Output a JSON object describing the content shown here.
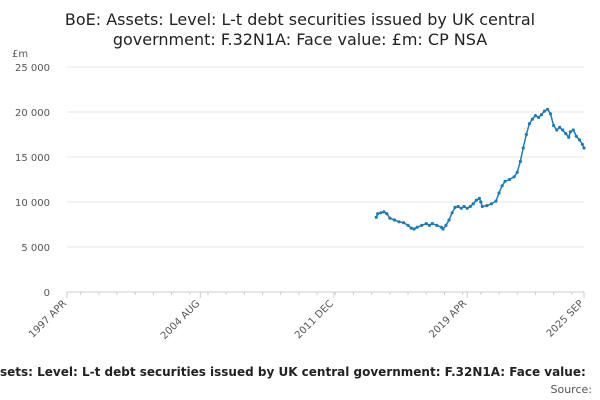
{
  "chart_data": {
    "type": "line",
    "title_line1": "BoE: Assets: Level: L-t debt securities issued by UK central",
    "title_line2": "government: F.32N1A: Face value: £m: CP NSA",
    "ylabel": "£m",
    "ylim": [
      0,
      25000
    ],
    "yticks": [
      "0",
      "5 000",
      "10 000",
      "15 000",
      "20 000",
      "25 000"
    ],
    "xlim": [
      1997.25,
      2025.67
    ],
    "xticks": [
      {
        "label": "1997 APR",
        "x": 1997.25
      },
      {
        "label": "2004 AUG",
        "x": 2004.58
      },
      {
        "label": "2011 DEC",
        "x": 2011.92
      },
      {
        "label": "2019 APR",
        "x": 2019.25
      },
      {
        "label": "2025 SEP",
        "x": 2025.67
      }
    ],
    "grid": true,
    "color": "#1f7ab8",
    "footer_text": "sets: Level: L-t debt securities issued by UK central government: F.32N1A: Face value:",
    "source_text": "Source:",
    "series": [
      {
        "points": [
          [
            2014.25,
            8300
          ],
          [
            2014.33,
            8700
          ],
          [
            2014.5,
            8800
          ],
          [
            2014.67,
            8900
          ],
          [
            2014.83,
            8700
          ],
          [
            2015.0,
            8200
          ],
          [
            2015.25,
            8000
          ],
          [
            2015.5,
            7800
          ],
          [
            2015.75,
            7700
          ],
          [
            2016.0,
            7400
          ],
          [
            2016.17,
            7100
          ],
          [
            2016.33,
            7000
          ],
          [
            2016.5,
            7200
          ],
          [
            2016.75,
            7400
          ],
          [
            2017.0,
            7600
          ],
          [
            2017.17,
            7400
          ],
          [
            2017.33,
            7600
          ],
          [
            2017.58,
            7400
          ],
          [
            2017.83,
            7200
          ],
          [
            2017.92,
            7000
          ],
          [
            2018.08,
            7400
          ],
          [
            2018.25,
            8000
          ],
          [
            2018.42,
            8800
          ],
          [
            2018.58,
            9400
          ],
          [
            2018.75,
            9500
          ],
          [
            2018.92,
            9300
          ],
          [
            2019.08,
            9500
          ],
          [
            2019.25,
            9300
          ],
          [
            2019.42,
            9500
          ],
          [
            2019.58,
            9800
          ],
          [
            2019.75,
            10200
          ],
          [
            2019.92,
            10400
          ],
          [
            2020.0,
            10000
          ],
          [
            2020.08,
            9500
          ],
          [
            2020.33,
            9600
          ],
          [
            2020.58,
            9800
          ],
          [
            2020.83,
            10100
          ],
          [
            2021.0,
            11000
          ],
          [
            2021.17,
            11800
          ],
          [
            2021.33,
            12300
          ],
          [
            2021.58,
            12500
          ],
          [
            2021.83,
            12800
          ],
          [
            2022.0,
            13300
          ],
          [
            2022.17,
            14500
          ],
          [
            2022.33,
            16000
          ],
          [
            2022.5,
            17500
          ],
          [
            2022.67,
            18700
          ],
          [
            2022.83,
            19200
          ],
          [
            2023.0,
            19600
          ],
          [
            2023.17,
            19400
          ],
          [
            2023.33,
            19700
          ],
          [
            2023.5,
            20100
          ],
          [
            2023.67,
            20300
          ],
          [
            2023.83,
            19800
          ],
          [
            2024.0,
            18500
          ],
          [
            2024.17,
            18000
          ],
          [
            2024.33,
            18300
          ],
          [
            2024.5,
            18000
          ],
          [
            2024.67,
            17600
          ],
          [
            2024.83,
            17200
          ],
          [
            2024.92,
            17800
          ],
          [
            2025.08,
            18000
          ],
          [
            2025.25,
            17300
          ],
          [
            2025.42,
            16900
          ],
          [
            2025.58,
            16400
          ],
          [
            2025.67,
            16000
          ]
        ]
      }
    ]
  }
}
